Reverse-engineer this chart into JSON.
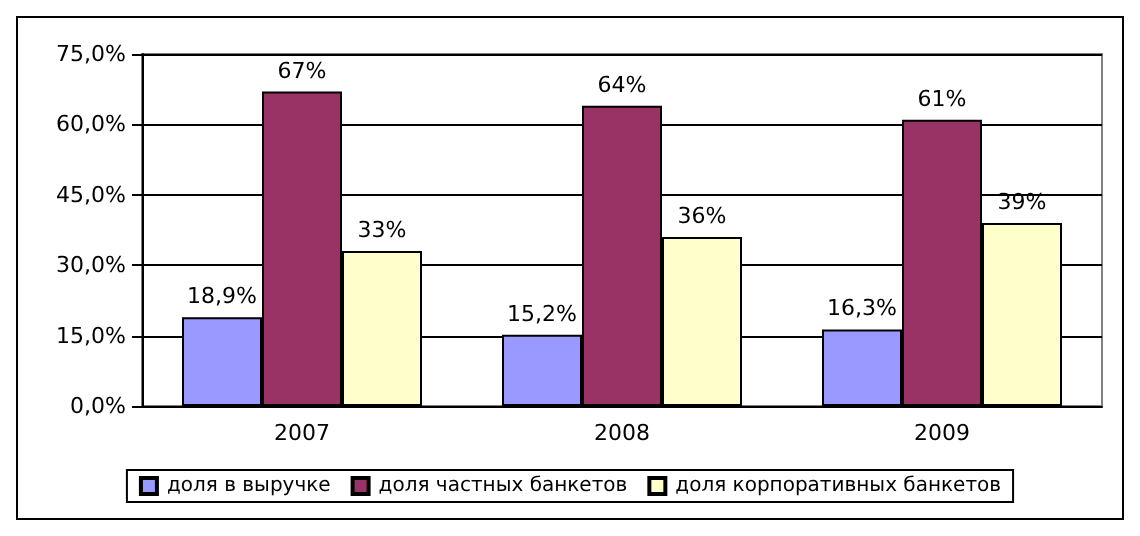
{
  "chart_data": {
    "type": "bar",
    "categories": [
      "2007",
      "2008",
      "2009"
    ],
    "series": [
      {
        "name": "доля в выручке",
        "color": "#9999ff",
        "values": [
          18.9,
          15.2,
          16.3
        ],
        "value_labels": [
          "18,9%",
          "15,2%",
          "16,3%"
        ]
      },
      {
        "name": "доля частных банкетов",
        "color": "#993366",
        "values": [
          67,
          64,
          61
        ],
        "value_labels": [
          "67%",
          "64%",
          "61%"
        ]
      },
      {
        "name": "доля корпоративных банкетов",
        "color": "#ffffcc",
        "values": [
          33,
          36,
          39
        ],
        "value_labels": [
          "33%",
          "36%",
          "39%"
        ]
      }
    ],
    "ylim": [
      0,
      75
    ],
    "yticks": [
      {
        "value": 0,
        "label": "0,0%"
      },
      {
        "value": 15,
        "label": "15,0%"
      },
      {
        "value": 30,
        "label": "30,0%"
      },
      {
        "value": 45,
        "label": "45,0%"
      },
      {
        "value": 60,
        "label": "60,0%"
      },
      {
        "value": 75,
        "label": "75,0%"
      }
    ],
    "grid": "y",
    "legend": "bottom"
  }
}
